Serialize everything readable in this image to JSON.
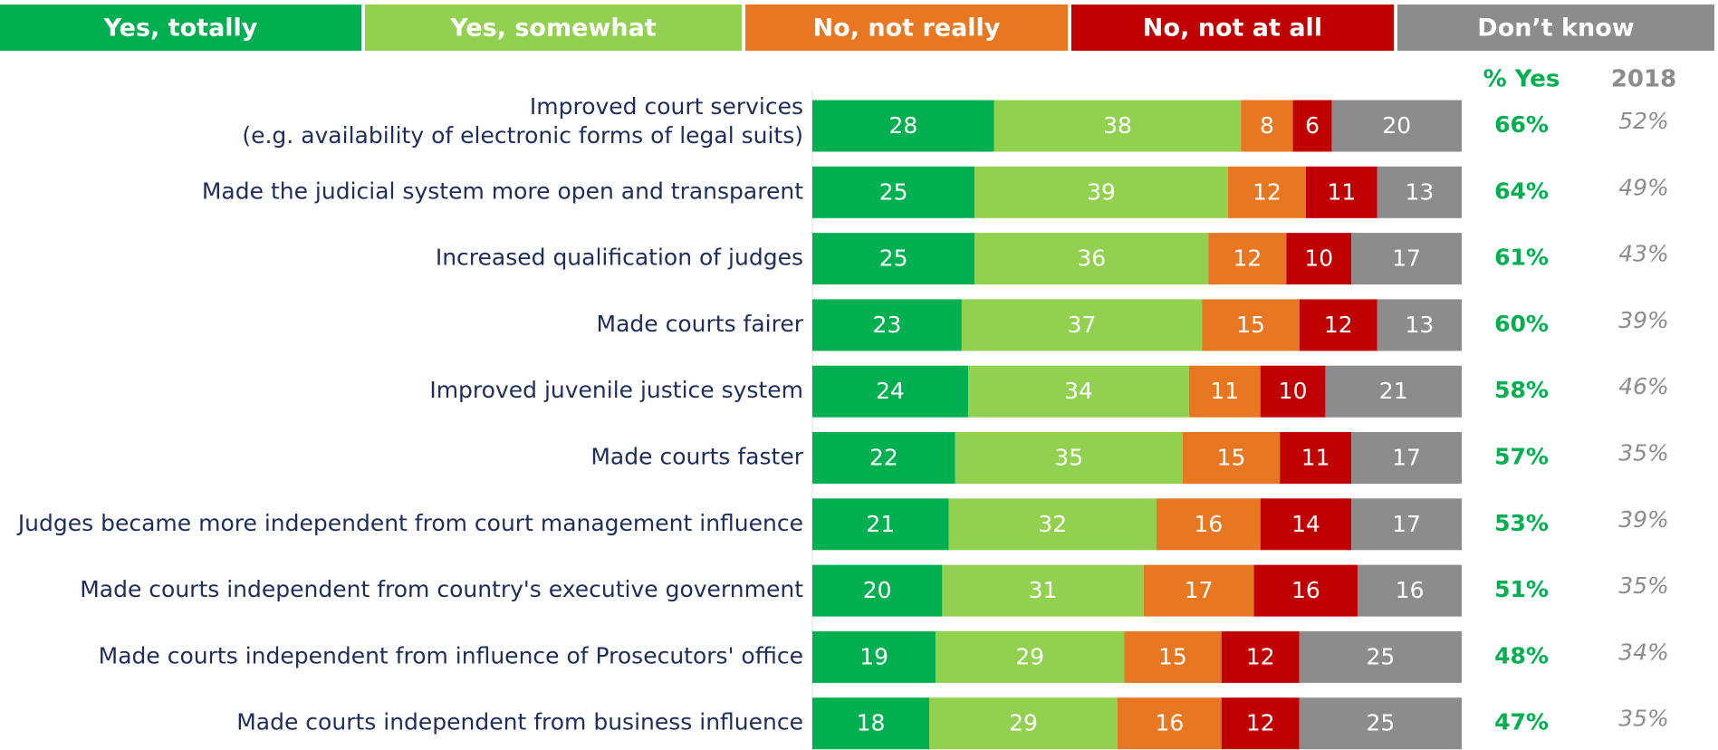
{
  "chart_data": {
    "type": "stacked_bar_horizontal",
    "categories": [
      "Improved court services\n(e.g. availability of electronic forms of legal suits)",
      "Made the judicial system more open and transparent",
      "Increased qualification of judges",
      "Made courts fairer",
      "Improved juvenile justice system",
      "Made courts faster",
      "Judges became more independent from court management influence",
      "Made courts independent from country's executive government",
      "Made courts independent from influence of Prosecutors' office",
      "Made courts independent from business influence"
    ],
    "series": [
      {
        "name": "Yes, totally",
        "color": "#00b050",
        "values": [
          28,
          25,
          25,
          23,
          24,
          22,
          21,
          20,
          19,
          18
        ]
      },
      {
        "name": "Yes, somewhat",
        "color": "#92d050",
        "values": [
          38,
          39,
          36,
          37,
          34,
          35,
          32,
          31,
          29,
          29
        ]
      },
      {
        "name": "No, not really",
        "color": "#e87722",
        "values": [
          8,
          12,
          12,
          15,
          11,
          15,
          16,
          17,
          15,
          16
        ]
      },
      {
        "name": "No, not at all",
        "color": "#c00000",
        "values": [
          6,
          11,
          10,
          12,
          10,
          11,
          14,
          16,
          12,
          12
        ]
      },
      {
        "name": "Don’t know",
        "color": "#8c8c8c",
        "values": [
          20,
          13,
          17,
          13,
          21,
          17,
          17,
          16,
          25,
          25
        ]
      }
    ],
    "xlim": [
      0,
      100
    ],
    "columns": [
      {
        "label": "% Yes",
        "color": "#00b050",
        "values": [
          66,
          64,
          61,
          60,
          58,
          57,
          53,
          51,
          48,
          47
        ],
        "value_labels": [
          "66%",
          "64%",
          "61%",
          "60%",
          "58%",
          "57%",
          "53%",
          "51%",
          "48%",
          "47%"
        ]
      },
      {
        "label": "2018",
        "color": "#8c8c8c",
        "values": [
          52,
          49,
          43,
          39,
          46,
          35,
          39,
          35,
          34,
          35
        ],
        "value_labels": [
          "52%",
          "49%",
          "43%",
          "39%",
          "46%",
          "35%",
          "39%",
          "35%",
          "34%",
          "35%"
        ]
      }
    ]
  }
}
